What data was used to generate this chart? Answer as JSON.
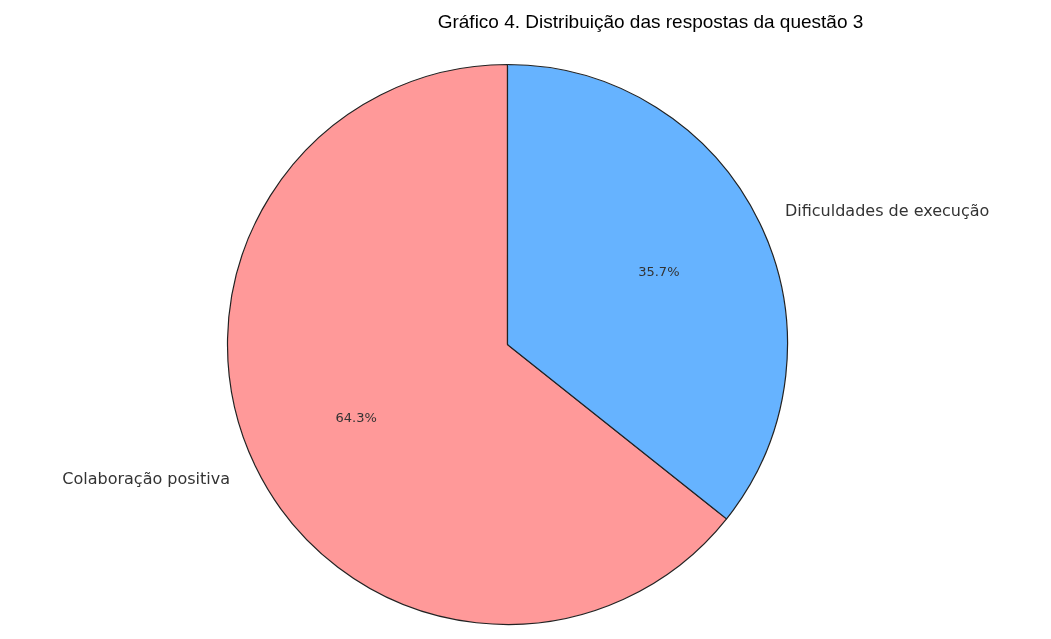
{
  "chart_data": {
    "type": "pie",
    "title": "Gráfico 4. Distribuição das respostas da questão 3",
    "categories": [
      "Colaboração positiva",
      "Dificuldades de execução"
    ],
    "values": [
      64.3,
      35.7
    ],
    "colors": [
      "#ff9999",
      "#66b3ff"
    ],
    "value_labels": [
      "64.3%",
      "35.7%"
    ],
    "legend": false
  }
}
